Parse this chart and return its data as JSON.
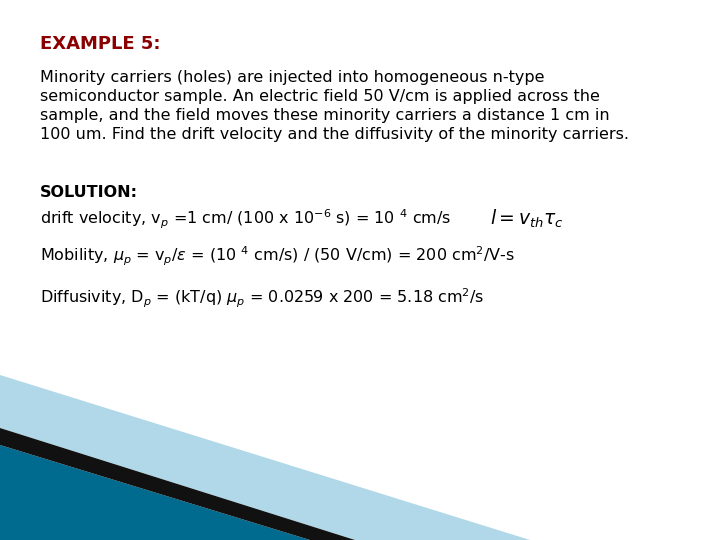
{
  "title": "EXAMPLE 5:",
  "title_color": "#8B0000",
  "title_fontsize": 13,
  "bg_color": "#FFFFFF",
  "body_fontsize": 11.5,
  "body_color": "#000000",
  "paragraph1_lines": [
    "Minority carriers (holes) are injected into homogeneous n-type",
    "semiconductor sample. An electric field 50 V/cm is applied across the",
    "sample, and the field moves these minority carriers a distance 1 cm in",
    "100 um. Find the drift velocity and the diffusivity of the minority carriers."
  ],
  "solution_label": "SOLUTION:",
  "teal_color": "#006B8F",
  "black_color": "#111111",
  "lightblue_color": "#B0D8E8"
}
